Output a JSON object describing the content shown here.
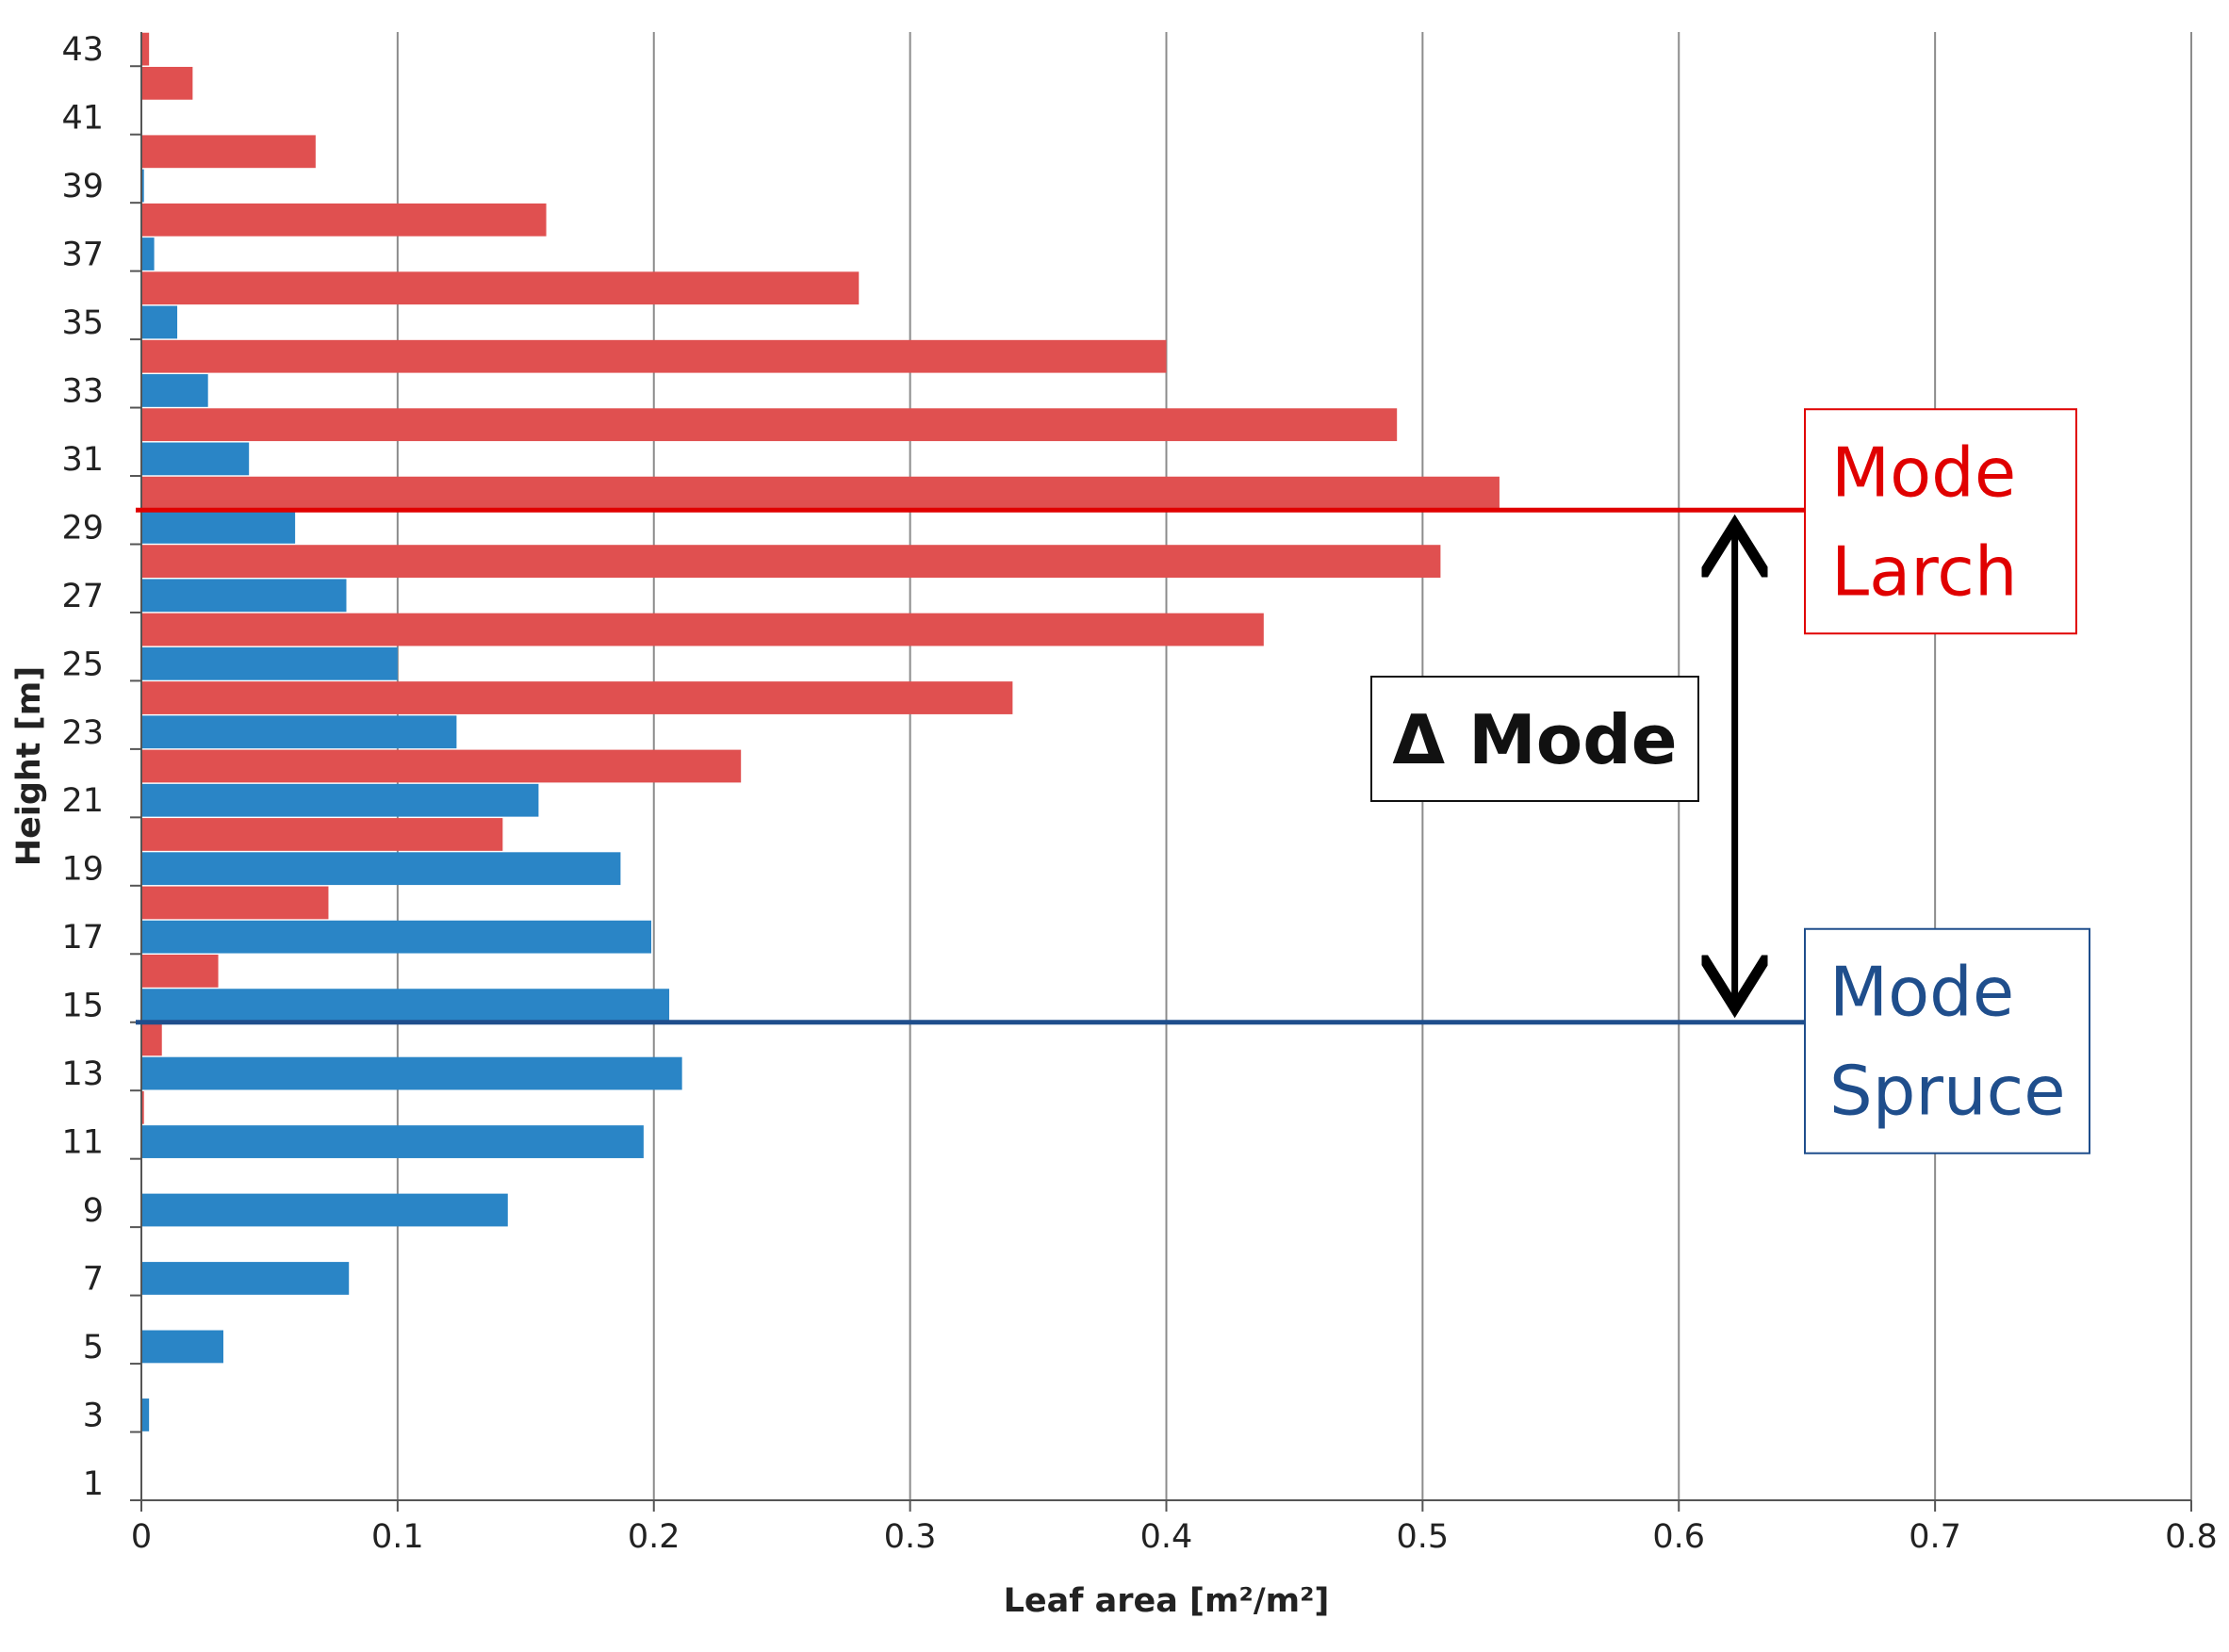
{
  "chart_data": {
    "type": "bar",
    "orientation": "horizontal",
    "xlabel": "Leaf area [m²/m²]",
    "ylabel": "Height [m]",
    "xlim": [
      0,
      0.8
    ],
    "x_ticks": [
      0,
      0.1,
      0.2,
      0.3,
      0.4,
      0.5,
      0.6,
      0.7,
      0.8
    ],
    "x_tick_labels": [
      "0",
      "0.1",
      "0.2",
      "0.3",
      "0.4",
      "0.5",
      "0.6",
      "0.7",
      "0.8"
    ],
    "grid": "vertical",
    "categories": [
      1,
      2,
      3,
      4,
      5,
      6,
      7,
      8,
      9,
      10,
      11,
      12,
      13,
      14,
      15,
      16,
      17,
      18,
      19,
      20,
      21,
      22,
      23,
      24,
      25,
      26,
      27,
      28,
      29,
      30,
      31,
      32,
      33,
      34,
      35,
      36,
      37,
      38,
      39,
      40,
      41,
      42,
      43
    ],
    "y_tick_labels": [
      "1",
      "3",
      "5",
      "7",
      "9",
      "11",
      "13",
      "15",
      "17",
      "19",
      "21",
      "23",
      "25",
      "27",
      "29",
      "31",
      "33",
      "35",
      "37",
      "39",
      "41",
      "43"
    ],
    "series": [
      {
        "name": "Larch",
        "color": "#e05050",
        "values": [
          0,
          0,
          0,
          0,
          0,
          0,
          0,
          0,
          0,
          0,
          0,
          0.001,
          0,
          0.008,
          0,
          0.03,
          0,
          0.073,
          0,
          0.141,
          0,
          0.234,
          0,
          0.34,
          0,
          0.438,
          0,
          0.507,
          0,
          0.53,
          0,
          0.49,
          0,
          0.4,
          0,
          0.28,
          0,
          0.158,
          0,
          0.068,
          0,
          0.02,
          0.003
        ]
      },
      {
        "name": "Spruce",
        "color": "#2a85c6",
        "values": [
          0,
          0,
          0.003,
          0,
          0.032,
          0,
          0.081,
          0,
          0.143,
          0,
          0.196,
          0,
          0.211,
          0,
          0.206,
          0,
          0.199,
          0,
          0.187,
          0,
          0.155,
          0,
          0.123,
          0,
          0.1,
          0,
          0.08,
          0,
          0.06,
          0,
          0.042,
          0,
          0.026,
          0,
          0.014,
          0,
          0.005,
          0,
          0.001,
          0,
          0,
          0,
          0
        ]
      }
    ],
    "annotations": {
      "mode_larch": {
        "height": 29.5,
        "label_lines": [
          "Mode",
          "Larch"
        ],
        "color": "#e00000"
      },
      "mode_spruce": {
        "height": 14.5,
        "label_lines": [
          "Mode",
          "Spruce"
        ],
        "color": "#1f4e8c"
      },
      "delta": {
        "label": "Δ Mode",
        "x_value": 0.62
      }
    }
  }
}
